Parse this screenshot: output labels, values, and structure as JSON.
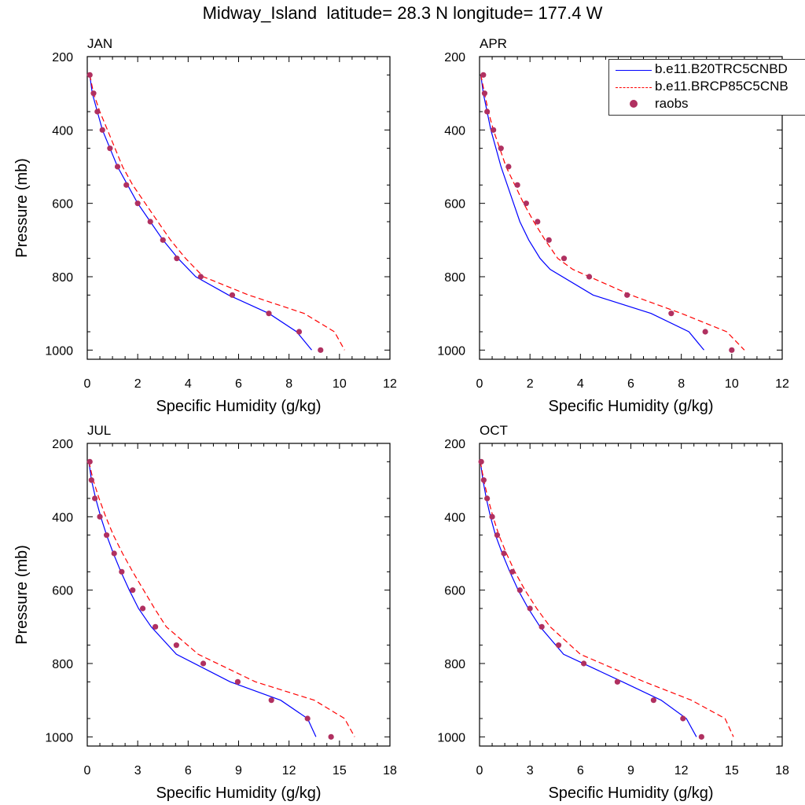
{
  "title": "Midway_Island  latitude= 28.3 N longitude= 177.4 W",
  "colors": {
    "series_1": "#0000ff",
    "series_2": "#ff0000",
    "raobs": "#b03060"
  },
  "legend": {
    "placement": "top-right",
    "entries": [
      {
        "label": "b.e11.B20TRC5CNBD",
        "style": "solid-line",
        "color": "#0000ff"
      },
      {
        "label": "b.e11.BRCP85C5CNB",
        "style": "dashed-line",
        "color": "#ff0000"
      },
      {
        "label": "raobs",
        "style": "dot",
        "color": "#b03060"
      }
    ]
  },
  "chart_data": [
    {
      "type": "line",
      "title": "JAN",
      "xlabel": "Specific Humidity (g/kg)",
      "ylabel": "Pressure (mb)",
      "xlim": [
        0,
        12
      ],
      "xticks": [
        0,
        2,
        4,
        6,
        8,
        10,
        12
      ],
      "ylim": [
        200,
        1025
      ],
      "yticks": [
        200,
        400,
        600,
        800,
        1000
      ],
      "y_reversed": true,
      "pressure": [
        250,
        300,
        350,
        400,
        450,
        500,
        550,
        600,
        650,
        700,
        750,
        800,
        850,
        900,
        950,
        1000
      ],
      "series": [
        {
          "name": "b.e11.B20TRC5CNBD",
          "style": "solid",
          "x": [
            0.1,
            0.2,
            0.4,
            0.6,
            0.9,
            1.2,
            1.6,
            2.0,
            2.5,
            3.0,
            3.6,
            4.3,
            5.6,
            7.2,
            8.3,
            8.9
          ],
          "y": [
            250,
            300,
            350,
            400,
            450,
            500,
            550,
            600,
            650,
            700,
            750,
            800,
            850,
            900,
            950,
            1000
          ]
        },
        {
          "name": "b.e11.BRCP85C5CNB",
          "style": "dashed",
          "x": [
            0.1,
            0.25,
            0.5,
            0.8,
            1.1,
            1.4,
            1.8,
            2.3,
            2.8,
            3.3,
            3.9,
            4.6,
            6.4,
            8.6,
            9.8,
            10.2
          ],
          "y": [
            250,
            300,
            350,
            400,
            450,
            500,
            550,
            600,
            650,
            700,
            750,
            800,
            850,
            900,
            950,
            1000
          ]
        },
        {
          "name": "raobs",
          "style": "dots",
          "x": [
            0.1,
            0.25,
            0.4,
            0.6,
            0.9,
            1.2,
            1.55,
            2.0,
            2.5,
            3.0,
            3.55,
            4.5,
            5.75,
            7.2,
            8.4,
            9.25
          ],
          "y": [
            250,
            300,
            350,
            400,
            450,
            500,
            550,
            600,
            650,
            700,
            750,
            800,
            850,
            900,
            950,
            1000
          ]
        }
      ]
    },
    {
      "type": "line",
      "title": "APR",
      "xlabel": "Specific Humidity (g/kg)",
      "ylabel": "",
      "xlim": [
        0,
        12
      ],
      "xticks": [
        0,
        2,
        4,
        6,
        8,
        10,
        12
      ],
      "ylim": [
        200,
        1025
      ],
      "yticks": [
        200,
        400,
        600,
        800,
        1000
      ],
      "y_reversed": true,
      "series": [
        {
          "name": "b.e11.B20TRC5CNBD",
          "style": "solid",
          "x": [
            0.05,
            0.15,
            0.3,
            0.45,
            0.65,
            0.85,
            1.1,
            1.35,
            1.6,
            1.95,
            2.4,
            2.8,
            4.5,
            6.8,
            8.3,
            8.9
          ],
          "y": [
            250,
            300,
            350,
            400,
            450,
            500,
            550,
            600,
            650,
            700,
            750,
            780,
            850,
            900,
            950,
            1000
          ]
        },
        {
          "name": "b.e11.BRCP85C5CNB",
          "style": "dashed",
          "x": [
            0.05,
            0.2,
            0.35,
            0.55,
            0.8,
            1.05,
            1.4,
            1.75,
            2.15,
            2.6,
            3.1,
            3.7,
            6.0,
            8.0,
            9.8,
            10.5
          ],
          "y": [
            250,
            300,
            350,
            400,
            450,
            500,
            550,
            600,
            650,
            700,
            750,
            780,
            850,
            900,
            950,
            1000
          ]
        },
        {
          "name": "raobs",
          "style": "dots",
          "x": [
            0.15,
            0.2,
            0.3,
            0.55,
            0.85,
            1.15,
            1.5,
            1.85,
            2.3,
            2.75,
            3.35,
            4.35,
            5.85,
            7.6,
            8.95,
            10.0
          ],
          "y": [
            250,
            300,
            350,
            400,
            450,
            500,
            550,
            600,
            650,
            700,
            750,
            800,
            850,
            900,
            950,
            1000
          ]
        }
      ]
    },
    {
      "type": "line",
      "title": "JUL",
      "xlabel": "Specific Humidity (g/kg)",
      "ylabel": "Pressure (mb)",
      "xlim": [
        0,
        18
      ],
      "xticks": [
        0,
        3,
        6,
        9,
        12,
        15,
        18
      ],
      "ylim": [
        200,
        1025
      ],
      "yticks": [
        200,
        400,
        600,
        800,
        1000
      ],
      "y_reversed": true,
      "series": [
        {
          "name": "b.e11.B20TRC5CNBD",
          "style": "solid",
          "x": [
            0.1,
            0.25,
            0.5,
            0.8,
            1.15,
            1.55,
            2.0,
            2.5,
            3.05,
            3.8,
            5.3,
            8.5,
            11.5,
            13.1,
            13.6
          ],
          "y": [
            250,
            300,
            350,
            400,
            450,
            500,
            550,
            600,
            650,
            700,
            775,
            850,
            900,
            950,
            1000
          ]
        },
        {
          "name": "b.e11.BRCP85C5CNB",
          "style": "dashed",
          "x": [
            0.1,
            0.35,
            0.7,
            1.1,
            1.55,
            2.1,
            2.7,
            3.35,
            4.0,
            4.7,
            6.6,
            10.0,
            13.5,
            15.3,
            15.9
          ],
          "y": [
            250,
            300,
            350,
            400,
            450,
            500,
            550,
            600,
            650,
            700,
            775,
            850,
            900,
            950,
            1000
          ]
        },
        {
          "name": "raobs",
          "style": "dots",
          "x": [
            0.15,
            0.25,
            0.45,
            0.75,
            1.15,
            1.6,
            2.05,
            2.7,
            3.3,
            4.05,
            5.3,
            6.9,
            8.95,
            10.95,
            13.1,
            14.5
          ],
          "y": [
            250,
            300,
            350,
            400,
            450,
            500,
            550,
            600,
            650,
            700,
            750,
            800,
            850,
            900,
            950,
            1000
          ]
        }
      ]
    },
    {
      "type": "line",
      "title": "OCT",
      "xlabel": "Specific Humidity (g/kg)",
      "ylabel": "",
      "xlim": [
        0,
        18
      ],
      "xticks": [
        0,
        3,
        6,
        9,
        12,
        15,
        18
      ],
      "ylim": [
        200,
        1025
      ],
      "yticks": [
        200,
        400,
        600,
        800,
        1000
      ],
      "y_reversed": true,
      "series": [
        {
          "name": "b.e11.B20TRC5CNBD",
          "style": "solid",
          "x": [
            0.05,
            0.2,
            0.4,
            0.65,
            0.95,
            1.35,
            1.8,
            2.3,
            2.9,
            3.6,
            5.0,
            8.5,
            10.8,
            12.3,
            12.9
          ],
          "y": [
            250,
            300,
            350,
            400,
            450,
            500,
            550,
            600,
            650,
            700,
            775,
            850,
            900,
            950,
            1000
          ]
        },
        {
          "name": "b.e11.BRCP85C5CNB",
          "style": "dashed",
          "x": [
            0.05,
            0.25,
            0.5,
            0.8,
            1.15,
            1.6,
            2.1,
            2.7,
            3.4,
            4.2,
            6.0,
            9.8,
            12.6,
            14.6,
            15.1
          ],
          "y": [
            250,
            300,
            350,
            400,
            450,
            500,
            550,
            600,
            650,
            700,
            775,
            850,
            900,
            950,
            1000
          ]
        },
        {
          "name": "raobs",
          "style": "dots",
          "x": [
            0.1,
            0.25,
            0.45,
            0.75,
            1.05,
            1.45,
            1.95,
            2.4,
            3.0,
            3.7,
            4.7,
            6.2,
            8.2,
            10.35,
            12.1,
            13.2
          ],
          "y": [
            250,
            300,
            350,
            400,
            450,
            500,
            550,
            600,
            650,
            700,
            750,
            800,
            850,
            900,
            950,
            1000
          ]
        }
      ]
    }
  ]
}
